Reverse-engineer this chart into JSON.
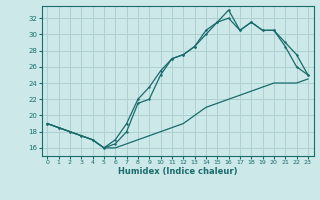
{
  "xlabel": "Humidex (Indice chaleur)",
  "bg_color": "#cce8e8",
  "grid_color": "#aed0d0",
  "line_color": "#1a6b6b",
  "xlim": [
    -0.5,
    23.5
  ],
  "ylim": [
    15.0,
    33.5
  ],
  "xticks": [
    0,
    1,
    2,
    3,
    4,
    5,
    6,
    7,
    8,
    9,
    10,
    11,
    12,
    13,
    14,
    15,
    16,
    17,
    18,
    19,
    20,
    21,
    22,
    23
  ],
  "yticks": [
    16,
    18,
    20,
    22,
    24,
    26,
    28,
    30,
    32
  ],
  "main_x": [
    0,
    1,
    2,
    3,
    4,
    5,
    6,
    7,
    8,
    9,
    10,
    11,
    12,
    13,
    14,
    15,
    16,
    17,
    18,
    19,
    20,
    21,
    22,
    23
  ],
  "main_y": [
    19,
    18.5,
    18,
    17.5,
    17,
    16,
    16.5,
    18,
    21.5,
    22,
    25,
    27,
    27.5,
    28.5,
    30.5,
    31.5,
    33,
    30.5,
    31.5,
    30.5,
    30.5,
    29,
    27.5,
    25
  ],
  "low_x": [
    0,
    1,
    2,
    3,
    4,
    5,
    6,
    7,
    8,
    9,
    10,
    11,
    12,
    13,
    14,
    15,
    16,
    17,
    18,
    19,
    20,
    21,
    22,
    23
  ],
  "low_y": [
    19,
    18.5,
    18,
    17.5,
    17,
    16,
    16,
    16.5,
    17,
    17.5,
    18,
    18.5,
    19,
    20,
    21,
    21.5,
    22,
    22.5,
    23,
    23.5,
    24,
    24,
    24,
    24.5
  ],
  "high_x": [
    0,
    1,
    2,
    3,
    4,
    5,
    6,
    7,
    8,
    9,
    10,
    11,
    12,
    13,
    14,
    15,
    16,
    17,
    18,
    19,
    20,
    21,
    22,
    23
  ],
  "high_y": [
    19,
    18.5,
    18,
    17.5,
    17,
    16,
    17,
    19,
    22,
    23.5,
    25.5,
    27,
    27.5,
    28.5,
    30,
    31.5,
    32,
    30.5,
    31.5,
    30.5,
    30.5,
    28.5,
    26,
    25
  ]
}
